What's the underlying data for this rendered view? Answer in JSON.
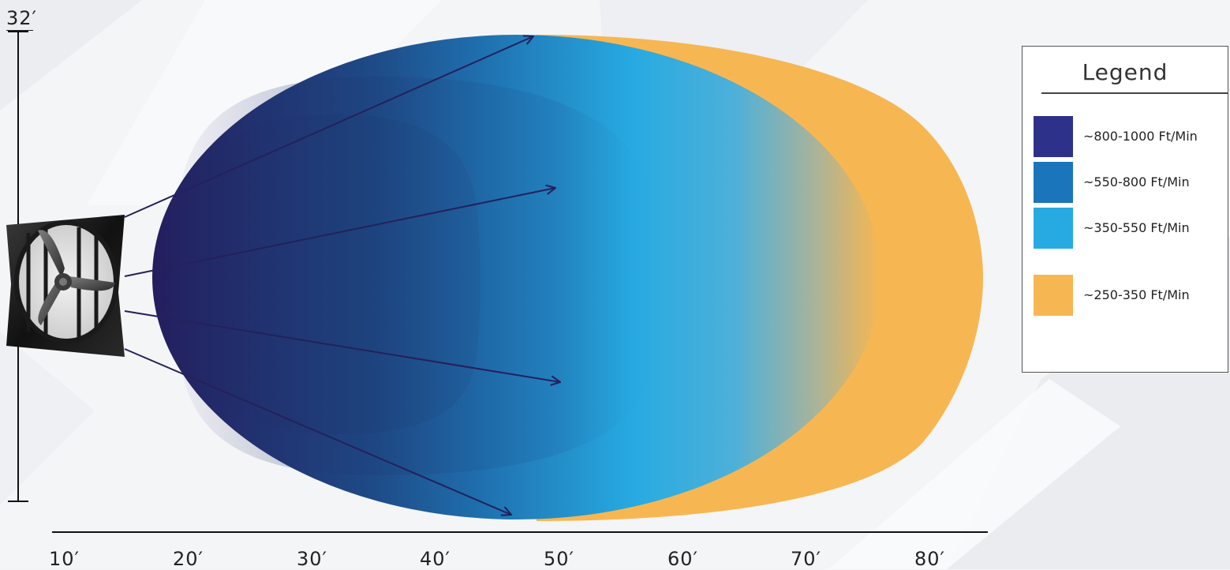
{
  "diagram": {
    "height_label": "32′",
    "x_axis_ticks": [
      "10′",
      "20′",
      "30′",
      "40′",
      "50′",
      "60′",
      "70′",
      "80′"
    ]
  },
  "legend": {
    "title": "Legend",
    "items": [
      {
        "label": "~800-1000 Ft/Min",
        "color": "#2e3189"
      },
      {
        "label": "~550-800 Ft/Min",
        "color": "#1a75bb"
      },
      {
        "label": "~350-550 Ft/Min",
        "color": "#27aae1"
      },
      {
        "label": "~250-350 Ft/Min",
        "color": "#f6b752"
      }
    ]
  },
  "colors": {
    "zone_dark": "#241e5e",
    "zone_mid": "#1f5c96",
    "zone_light": "#27aae1",
    "zone_orange": "#f6b752",
    "arrow": "#24215c"
  }
}
